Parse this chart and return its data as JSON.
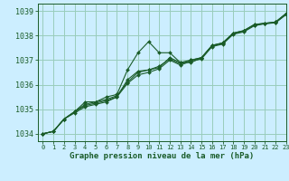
{
  "title": "Graphe pression niveau de la mer (hPa)",
  "background_color": "#cceeff",
  "plot_bg_color": "#cceeff",
  "grid_color": "#99ccbb",
  "line_color": "#1a5c28",
  "marker_color": "#1a5c28",
  "xlim": [
    -0.5,
    23
  ],
  "ylim": [
    1033.7,
    1039.3
  ],
  "yticks": [
    1034,
    1035,
    1036,
    1037,
    1038,
    1039
  ],
  "xticks": [
    0,
    1,
    2,
    3,
    4,
    5,
    6,
    7,
    8,
    9,
    10,
    11,
    12,
    13,
    14,
    15,
    16,
    17,
    18,
    19,
    20,
    21,
    22,
    23
  ],
  "series": [
    [
      1034.0,
      1034.1,
      1034.6,
      1034.9,
      1035.3,
      1035.3,
      1035.5,
      1035.6,
      1036.6,
      1037.3,
      1037.75,
      1037.3,
      1037.3,
      1036.9,
      1036.9,
      1037.1,
      1037.6,
      1037.7,
      1038.1,
      1038.2,
      1038.45,
      1038.5,
      1038.55,
      1038.9
    ],
    [
      1034.0,
      1034.1,
      1034.6,
      1034.9,
      1035.15,
      1035.25,
      1035.35,
      1035.5,
      1036.2,
      1036.55,
      1036.6,
      1036.7,
      1037.1,
      1036.9,
      1037.0,
      1037.1,
      1037.6,
      1037.7,
      1038.1,
      1038.2,
      1038.45,
      1038.5,
      1038.55,
      1038.9
    ],
    [
      1034.0,
      1034.1,
      1034.6,
      1034.85,
      1035.1,
      1035.2,
      1035.3,
      1035.5,
      1036.05,
      1036.4,
      1036.5,
      1036.65,
      1037.0,
      1036.8,
      1036.95,
      1037.05,
      1037.55,
      1037.65,
      1038.05,
      1038.15,
      1038.4,
      1038.48,
      1038.52,
      1038.85
    ],
    [
      1034.0,
      1034.1,
      1034.6,
      1034.9,
      1035.2,
      1035.3,
      1035.4,
      1035.55,
      1036.1,
      1036.5,
      1036.6,
      1036.75,
      1037.05,
      1036.85,
      1037.0,
      1037.1,
      1037.58,
      1037.68,
      1038.08,
      1038.18,
      1038.43,
      1038.49,
      1038.53,
      1038.88
    ]
  ]
}
